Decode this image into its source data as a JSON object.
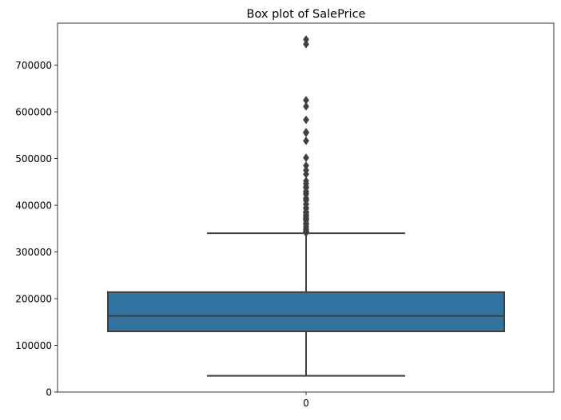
{
  "chart_data": {
    "type": "box",
    "title": "Box plot of SalePrice",
    "xlabel": "",
    "ylabel": "",
    "categories": [
      "0"
    ],
    "ylim": [
      0,
      790000
    ],
    "yticks": [
      0,
      100000,
      200000,
      300000,
      400000,
      500000,
      600000,
      700000
    ],
    "ytick_labels": [
      "0",
      "100000",
      "200000",
      "300000",
      "400000",
      "500000",
      "600000",
      "700000"
    ],
    "box": {
      "whisker_low": 34900,
      "q1": 129975,
      "median": 163000,
      "q3": 214000,
      "whisker_high": 340000
    },
    "outliers": [
      755000,
      745000,
      625000,
      611657,
      582933,
      556581,
      555000,
      538000,
      501837,
      485000,
      475000,
      466500,
      451950,
      446261,
      440000,
      437154,
      430000,
      426000,
      423000,
      415298,
      412500,
      410000,
      402861,
      402000,
      395192,
      392500,
      386250,
      385000,
      383970,
      380000,
      377500,
      377426,
      375000,
      372500,
      372402,
      370878,
      369900,
      367294,
      361919,
      360000,
      359100,
      354000,
      350000,
      348000,
      345000,
      344133,
      342643,
      341000
    ],
    "colors": {
      "box_fill": "#3274a1",
      "lines": "#3f3f3f"
    },
    "grid": false
  }
}
